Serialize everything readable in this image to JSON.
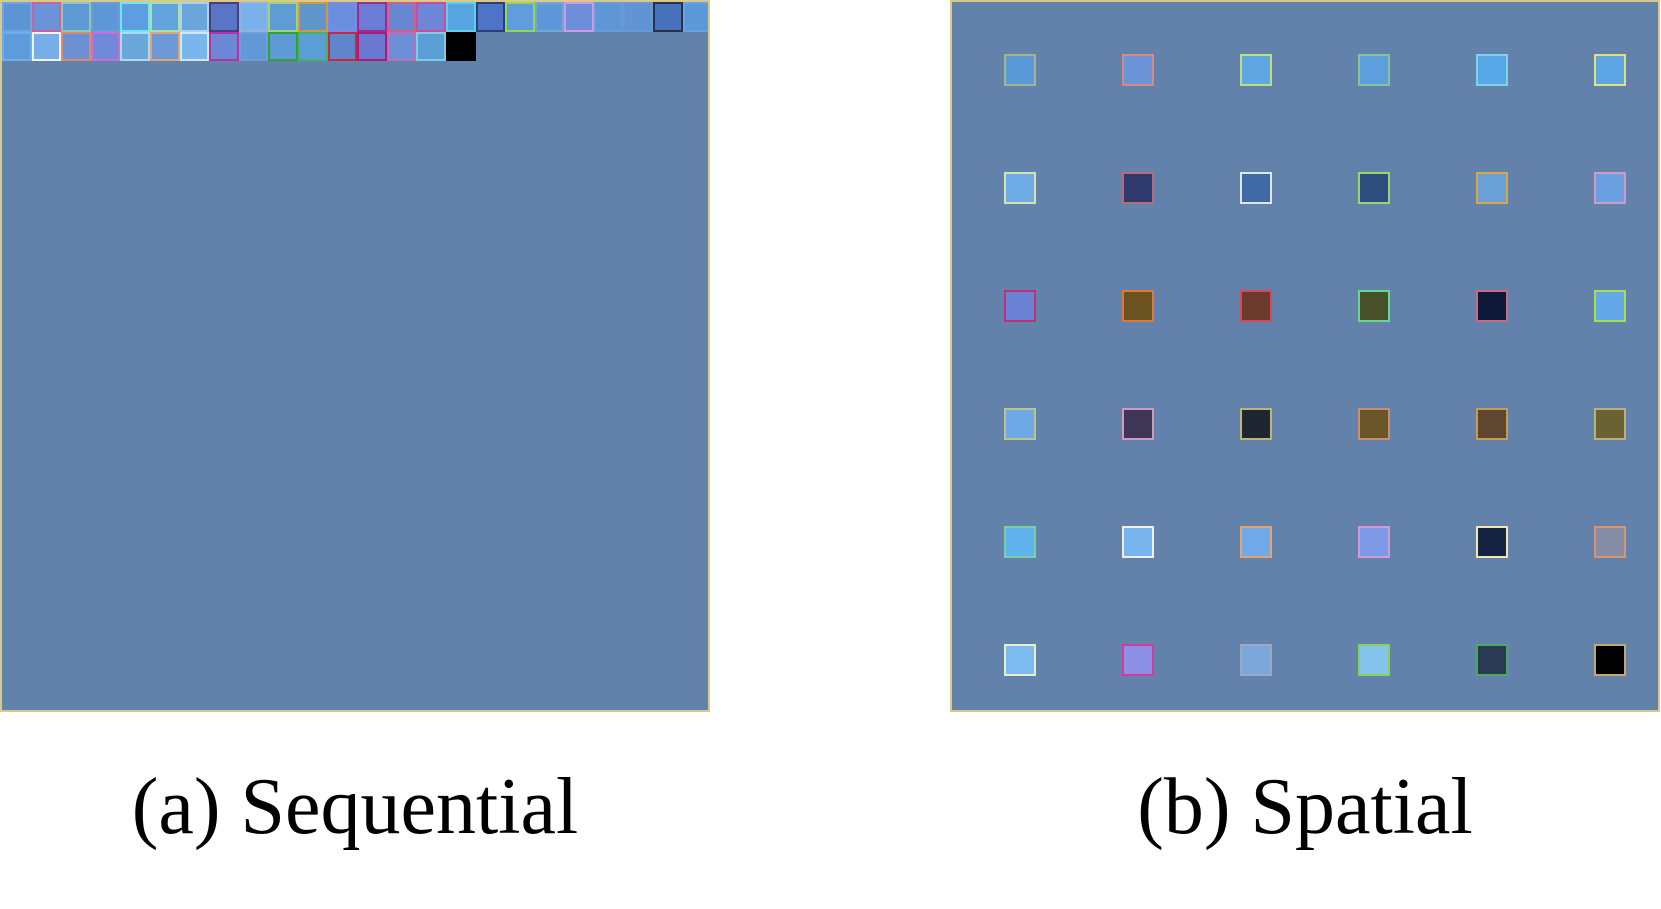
{
  "captions": {
    "a": "(a) Sequential",
    "b": "(b) Spatial"
  },
  "colors": {
    "canvas_background": "#6282ac",
    "panel_border": "#d9c98a"
  },
  "sequential_cells": [
    {
      "fill": "#5b95d5",
      "border": "#6fa6e0"
    },
    {
      "fill": "#6b94d8",
      "border": "#c9639f"
    },
    {
      "fill": "#5d9ad6",
      "border": "#8ec7b9"
    },
    {
      "fill": "#5c97d8",
      "border": "#6c9bd7"
    },
    {
      "fill": "#5e9ee0",
      "border": "#6fe6f2"
    },
    {
      "fill": "#63a3dd",
      "border": "#a7e3a8"
    },
    {
      "fill": "#6aa6dc",
      "border": "#b0d0ee"
    },
    {
      "fill": "#5876c5",
      "border": "#4b3d7b"
    },
    {
      "fill": "#79b1ea",
      "border": "#8fb2de"
    },
    {
      "fill": "#5f9cd6",
      "border": "#9fd47f"
    },
    {
      "fill": "#5f95cb",
      "border": "#cf9a3e"
    },
    {
      "fill": "#6a8fe0",
      "border": "#7c8ae0"
    },
    {
      "fill": "#6a7cd5",
      "border": "#a12a8e"
    },
    {
      "fill": "#6787d3",
      "border": "#d25f8a"
    },
    {
      "fill": "#6f85d8",
      "border": "#cc4b9d"
    },
    {
      "fill": "#56a4e0",
      "border": "#5fd0e6"
    },
    {
      "fill": "#4d74c9",
      "border": "#2e3d75"
    },
    {
      "fill": "#5f9ddf",
      "border": "#8ed94e"
    },
    {
      "fill": "#5f98d9",
      "border": "#71a8d8"
    },
    {
      "fill": "#6d8ed8",
      "border": "#cf99e4"
    },
    {
      "fill": "#5f97d6",
      "border": "#6a9bd7"
    },
    {
      "fill": "#5f95d4",
      "border": "#6b95d3"
    },
    {
      "fill": "#4873bc",
      "border": "#2a3248"
    },
    {
      "fill": "#5b99db",
      "border": "#66a3df"
    },
    {
      "fill": "#5e9bdb",
      "border": "#6db0e8"
    },
    {
      "fill": "#77aee8",
      "border": "#f1f4f6"
    },
    {
      "fill": "#6d90d3",
      "border": "#de8a6c"
    },
    {
      "fill": "#7089d8",
      "border": "#d16ad6"
    },
    {
      "fill": "#6aa7dd",
      "border": "#a9dcf2"
    },
    {
      "fill": "#6c99d5",
      "border": "#e0a574"
    },
    {
      "fill": "#7ab6ee",
      "border": "#cfe8f5"
    },
    {
      "fill": "#6b88d6",
      "border": "#b82fa8"
    },
    {
      "fill": "#6198d8",
      "border": "#6f9fd9"
    },
    {
      "fill": "#5e9ad4",
      "border": "#2fa33a"
    },
    {
      "fill": "#5c9ed6",
      "border": "#46b36d"
    },
    {
      "fill": "#5f86cd",
      "border": "#c7283f"
    },
    {
      "fill": "#6a78d2",
      "border": "#a81a7e"
    },
    {
      "fill": "#6c8fd8",
      "border": "#b86fb8"
    },
    {
      "fill": "#5b9fd6",
      "border": "#7ad0e0"
    },
    {
      "fill": "#000000",
      "border": "#000000"
    }
  ],
  "spatial_grid": {
    "rows": 6,
    "cols": 6,
    "cells": [
      {
        "fill": "#5b9ad8",
        "border": "#9fb78a"
      },
      {
        "fill": "#6b94d8",
        "border": "#d88a7a"
      },
      {
        "fill": "#5fa6e2",
        "border": "#b9e07c"
      },
      {
        "fill": "#5c9fde",
        "border": "#88c49a"
      },
      {
        "fill": "#58a7e6",
        "border": "#7ed4e4"
      },
      {
        "fill": "#5ea5e4",
        "border": "#dfe27a"
      },
      {
        "fill": "#6eaae6",
        "border": "#d2e4a8"
      },
      {
        "fill": "#2e3a6d",
        "border": "#b96a78"
      },
      {
        "fill": "#3f6aa6",
        "border": "#dbeaf0"
      },
      {
        "fill": "#2c4d7e",
        "border": "#9bd46a"
      },
      {
        "fill": "#6aa0d4",
        "border": "#d8a847"
      },
      {
        "fill": "#6a9fe2",
        "border": "#d19ac4"
      },
      {
        "fill": "#6b82d4",
        "border": "#c3307a"
      },
      {
        "fill": "#6b5320",
        "border": "#e0783c"
      },
      {
        "fill": "#6b3a2c",
        "border": "#d24a5c"
      },
      {
        "fill": "#48502a",
        "border": "#66d98c"
      },
      {
        "fill": "#101838",
        "border": "#c86a86"
      },
      {
        "fill": "#64a8e8",
        "border": "#a4e04c"
      },
      {
        "fill": "#6ea8e6",
        "border": "#bfc38a"
      },
      {
        "fill": "#3e3656",
        "border": "#d09ab8"
      },
      {
        "fill": "#1e2632",
        "border": "#c6b270"
      },
      {
        "fill": "#6a5628",
        "border": "#cb8e6c"
      },
      {
        "fill": "#5e4630",
        "border": "#c79c56"
      },
      {
        "fill": "#6a6234",
        "border": "#b6b27e"
      },
      {
        "fill": "#5fb2ec",
        "border": "#78d0a0"
      },
      {
        "fill": "#7ab4ee",
        "border": "#f2f0e4"
      },
      {
        "fill": "#70a8e8",
        "border": "#e4a472"
      },
      {
        "fill": "#7c9ae8",
        "border": "#d498d4"
      },
      {
        "fill": "#162342",
        "border": "#f0e8b0"
      },
      {
        "fill": "#868ea6",
        "border": "#d8946a"
      },
      {
        "fill": "#7cbcf0",
        "border": "#e4f0c8"
      },
      {
        "fill": "#8c90e6",
        "border": "#d43a9a"
      },
      {
        "fill": "#7ba6da",
        "border": "#9aa8c0"
      },
      {
        "fill": "#84c4ec",
        "border": "#84d45a"
      },
      {
        "fill": "#2a3a52",
        "border": "#4caa5c"
      },
      {
        "fill": "#000000",
        "border": "#c4a86a"
      }
    ]
  }
}
